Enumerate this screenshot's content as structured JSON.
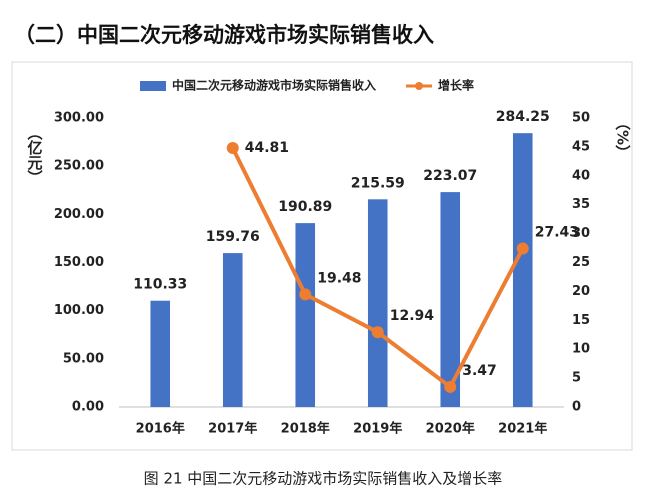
{
  "chart_data": {
    "type": "bar",
    "title": "（二）中国二次元移动游戏市场实际销售收入",
    "caption": "图 21 中国二次元移动游戏市场实际销售收入及增长率",
    "y_label": "（亿元）",
    "y2_label": "（%）",
    "categories": [
      "2016年",
      "2017年",
      "2018年",
      "2019年",
      "2020年",
      "2021年"
    ],
    "series": [
      {
        "name": "中国二次元移动游戏市场实际销售收入",
        "type": "bar",
        "color": "#4472c4",
        "values": [
          110.33,
          159.76,
          190.89,
          215.59,
          223.07,
          284.25
        ]
      },
      {
        "name": "增长率",
        "type": "line",
        "axis": "y2",
        "color": "#ed7d31",
        "values": [
          null,
          44.81,
          19.48,
          12.94,
          3.47,
          27.43
        ]
      }
    ],
    "ylim": [
      0,
      300
    ],
    "yticks": [
      {
        "value": 0,
        "label": "0.00"
      },
      {
        "value": 50,
        "label": "50.00"
      },
      {
        "value": 100,
        "label": "100.00"
      },
      {
        "value": 150,
        "label": "150.00"
      },
      {
        "value": 200,
        "label": "200.00"
      },
      {
        "value": 250,
        "label": "250.00"
      },
      {
        "value": 300,
        "label": "300.00"
      }
    ],
    "y2lim": [
      0,
      50
    ],
    "y2ticks": [
      0,
      5,
      10,
      15,
      20,
      25,
      30,
      35,
      40,
      45,
      50
    ],
    "legend": "top"
  }
}
